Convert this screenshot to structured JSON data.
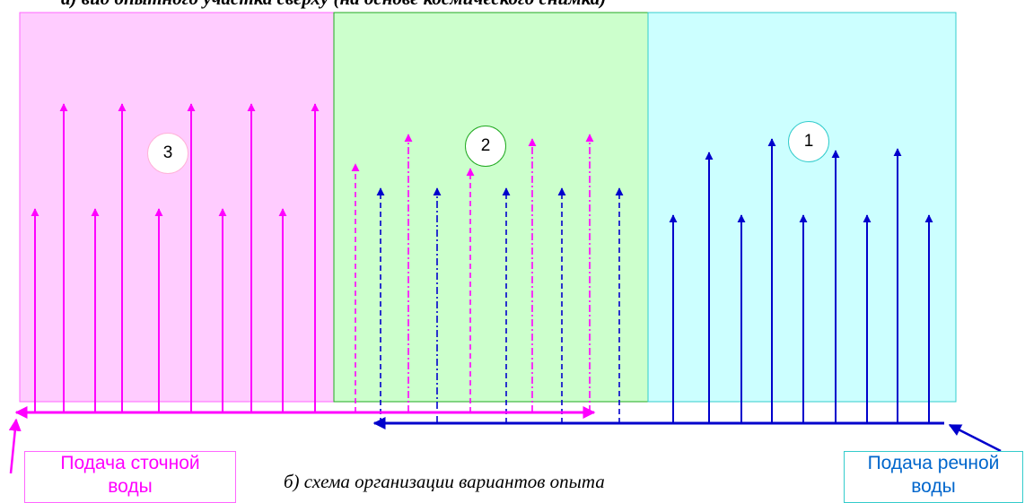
{
  "captions": {
    "top": "а) вид опытного участка сверху (на основе космического снимка)",
    "bottom": "б) схема организации вариантов опыта"
  },
  "zones": [
    {
      "number": "3",
      "fill": "#ffccff"
    },
    {
      "number": "2",
      "fill": "#ccffcc"
    },
    {
      "number": "1",
      "fill": "#ccffff"
    }
  ],
  "labels": {
    "left": {
      "line1": "Подача сточной",
      "line2": "воды"
    },
    "right": {
      "line1": "Подача речной",
      "line2": "воды"
    }
  },
  "colors": {
    "sewage": "#ff00ff",
    "river": "#0000cc",
    "zone3_border": "#ff66ff",
    "zone2_border": "#22aa22",
    "zone1_border": "#33cccc"
  }
}
